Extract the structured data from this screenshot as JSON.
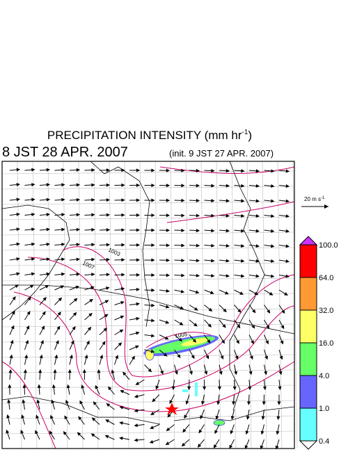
{
  "header": {
    "title": "PRECIPITATION INTENSITY (mm hr",
    "title_sup": "-1",
    "title_end": ")",
    "valid": "8 JST 28 APR. 2007",
    "init": "(init. 9 JST 27 APR. 2007)"
  },
  "vector_key": {
    "label": "20 m s",
    "label_sup": "-1"
  },
  "isobars": [
    "1003",
    "1007",
    "1005"
  ],
  "legend": {
    "labels": [
      "100.0",
      "64.0",
      "32.0",
      "16.0",
      "4.0",
      "1.0",
      "0.4"
    ],
    "colors": [
      "#cc33ff",
      "#ff0000",
      "#ff9933",
      "#ffff66",
      "#66ff66",
      "#6666ff",
      "#66ffff",
      "#ffffff"
    ]
  }
}
